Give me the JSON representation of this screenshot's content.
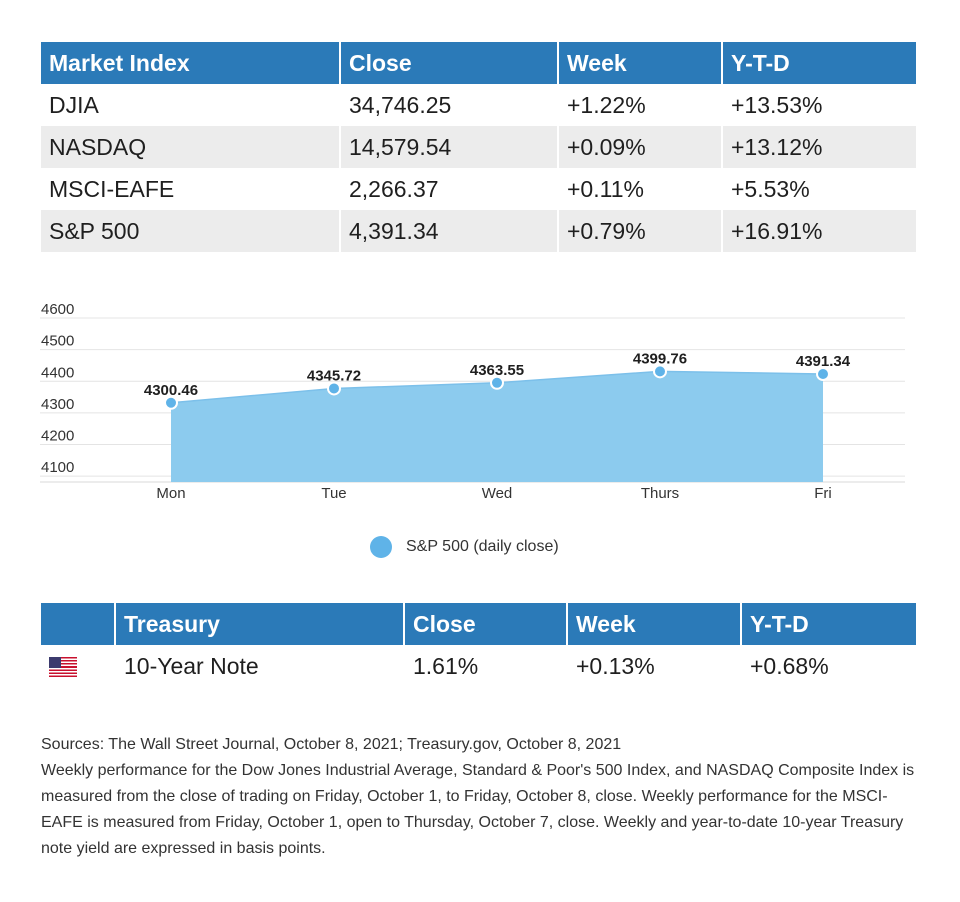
{
  "market_table": {
    "headers": [
      "Market Index",
      "Close",
      "Week",
      "Y-T-D"
    ],
    "rows": [
      [
        "DJIA",
        "34,746.25",
        "+1.22%",
        "+13.53%"
      ],
      [
        "NASDAQ",
        "14,579.54",
        "+0.09%",
        "+13.12%"
      ],
      [
        "MSCI-EAFE",
        "2,266.37",
        "+0.11%",
        "+5.53%"
      ],
      [
        "S&P 500",
        "4,391.34",
        "+0.79%",
        "+16.91%"
      ]
    ]
  },
  "chart_data": {
    "type": "area",
    "categories": [
      "Mon",
      "Tue",
      "Wed",
      "Thurs",
      "Fri"
    ],
    "series": [
      {
        "name": "S&P 500 (daily close)",
        "values": [
          4300.46,
          4345.72,
          4363.55,
          4399.76,
          4391.34
        ]
      }
    ],
    "data_labels": [
      "4300.46",
      "4345.72",
      "4363.55",
      "4399.76",
      "4391.34"
    ],
    "yticks": [
      4100,
      4200,
      4300,
      4400,
      4500,
      4600
    ],
    "ylim": [
      4050,
      4600
    ],
    "grid": true,
    "legend": "bottom-center",
    "fill_color": "#8ccbee",
    "marker_color": "#5fb3e8"
  },
  "legend": {
    "label": "S&P 500 (daily close)"
  },
  "treasury_table": {
    "headers": [
      "",
      "Treasury",
      "Close",
      "Week",
      "Y-T-D"
    ],
    "rows": [
      {
        "flag": "us-flag-icon",
        "name": "10-Year Note",
        "close": "1.61%",
        "week": "+0.13%",
        "ytd": "+0.68%"
      }
    ]
  },
  "notes": {
    "sources": "Sources: The Wall Street Journal, October 8, 2021; Treasury.gov, October 8, 2021",
    "text": "Weekly performance for the Dow Jones Industrial Average, Standard & Poor's 500 Index, and NASDAQ Composite Index is measured from the close of trading on Friday, October 1, to Friday, October 8, close. Weekly performance for the MSCI-EAFE is measured from Friday, October 1, open to Thursday, October 7, close. Weekly and year-to-date 10-year Treasury note yield are expressed in basis points."
  },
  "colors": {
    "header_bg": "#2b7ab8",
    "row_alt": "#ececec"
  }
}
